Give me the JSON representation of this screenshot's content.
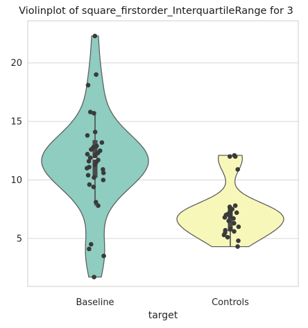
{
  "chart_data": {
    "type": "violin",
    "title": "Violinplot of square_firstorder_InterquartileRange for 3",
    "xlabel": "target",
    "ylabel": "",
    "categories": [
      "Baseline",
      "Controls"
    ],
    "ylim": [
      0.9,
      23.6
    ],
    "yticks": [
      5,
      10,
      15,
      20
    ],
    "grid": "horizontal",
    "violin_colors": [
      "#8ecdc0",
      "#f7f7b9"
    ],
    "point_color": "#3a3a3a",
    "series": [
      {
        "category": "Baseline",
        "min": 1.7,
        "max": 22.3,
        "q1": 10.2,
        "median": 11.8,
        "q3": 13.4,
        "whisker_low": 7.8,
        "whisker_high": 15.8,
        "points": [
          22.3,
          19.0,
          18.1,
          15.8,
          15.7,
          14.1,
          13.8,
          13.2,
          12.9,
          12.8,
          12.6,
          12.5,
          12.3,
          12.2,
          12.1,
          11.9,
          11.7,
          11.6,
          11.5,
          11.3,
          11.1,
          11.0,
          10.9,
          10.6,
          10.4,
          10.2,
          10.0,
          9.6,
          9.4,
          8.1,
          7.8,
          4.5,
          4.1,
          3.5,
          1.7
        ]
      },
      {
        "category": "Controls",
        "min": 4.3,
        "max": 12.1,
        "q1": 5.6,
        "median": 6.9,
        "q3": 7.6,
        "whisker_low": 4.3,
        "whisker_high": 7.7,
        "points": [
          12.1,
          12.0,
          12.0,
          10.9,
          7.8,
          7.7,
          7.6,
          7.5,
          7.3,
          7.2,
          7.1,
          7.0,
          7.0,
          6.9,
          6.8,
          6.7,
          6.5,
          6.3,
          6.0,
          5.8,
          5.7,
          5.6,
          5.5,
          5.3,
          5.1,
          4.8,
          4.3
        ]
      }
    ]
  }
}
